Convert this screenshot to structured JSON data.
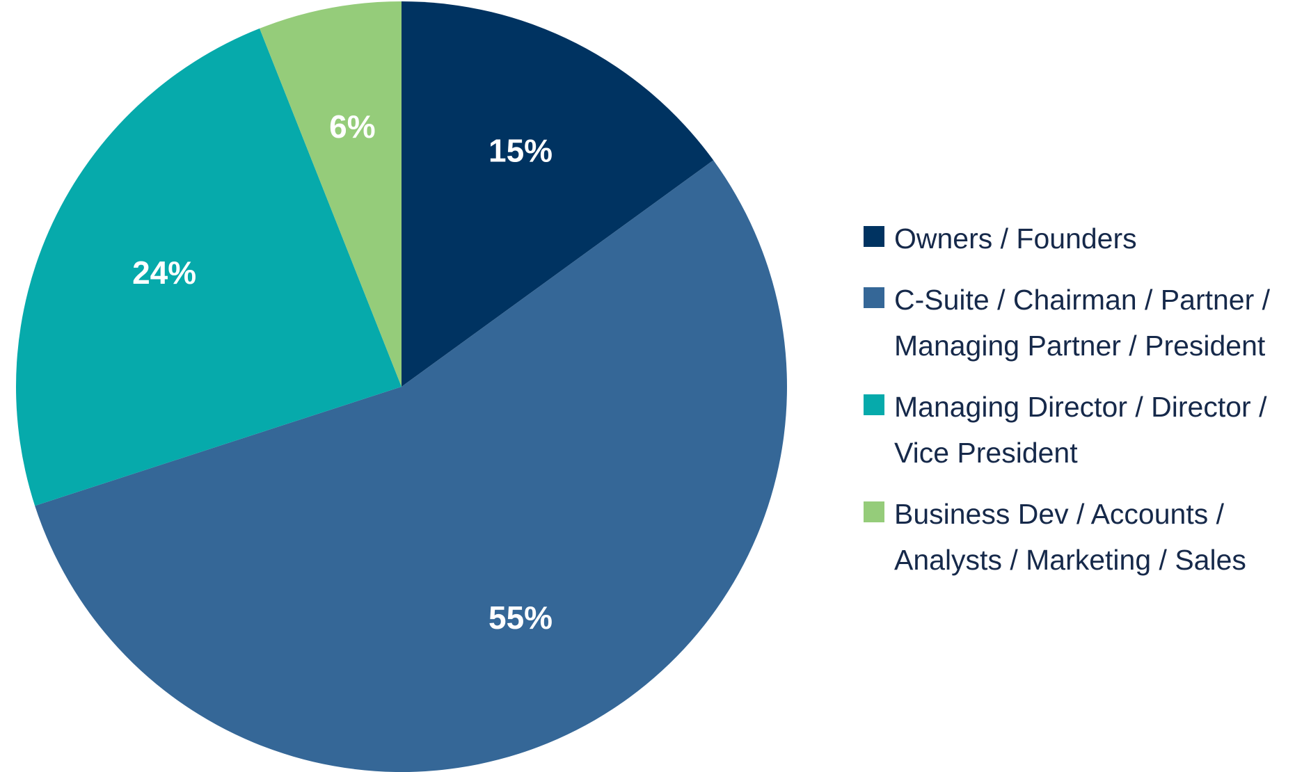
{
  "chart_data": {
    "type": "pie",
    "title": "",
    "start_angle_deg": 0,
    "direction": "clockwise",
    "labels_shown_as": "percent",
    "legend_position": "right",
    "slices": [
      {
        "name": "Owners / Founders",
        "value": 15,
        "label": "15%",
        "color": "#003361"
      },
      {
        "name": "C-Suite / Chairman / Partner / Managing Partner / President",
        "value": 55,
        "label": "55%",
        "color": "#356797"
      },
      {
        "name": "Managing Director / Director / Vice President",
        "value": 24,
        "label": "24%",
        "color": "#06aaab"
      },
      {
        "name": "Business Dev / Accounts / Analysts / Marketing / Sales",
        "value": 6,
        "label": "6%",
        "color": "#95cc7a"
      }
    ]
  },
  "legend": {
    "items": [
      {
        "lines": [
          "Owners / Founders"
        ],
        "color": "#003361"
      },
      {
        "lines": [
          "C-Suite / Chairman / Partner /",
          "Managing Partner / President"
        ],
        "color": "#356797"
      },
      {
        "lines": [
          "Managing Director / Director /",
          "Vice President"
        ],
        "color": "#06aaab"
      },
      {
        "lines": [
          "Business Dev / Accounts /",
          "Analysts / Marketing / Sales"
        ],
        "color": "#95cc7a"
      }
    ]
  }
}
